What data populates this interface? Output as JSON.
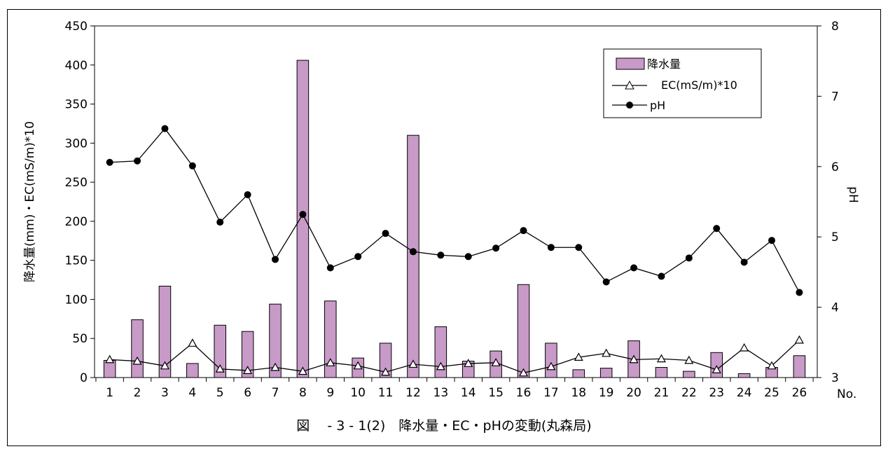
{
  "chart_data": {
    "type": "bar",
    "caption": "図　 - 3 - 1(2)　降水量・EC・pHの変動(丸森局)",
    "categories": [
      "1",
      "2",
      "3",
      "4",
      "5",
      "6",
      "7",
      "8",
      "9",
      "10",
      "11",
      "12",
      "13",
      "14",
      "15",
      "16",
      "17",
      "18",
      "19",
      "20",
      "21",
      "22",
      "23",
      "24",
      "25",
      "26"
    ],
    "x_end_label": "No.",
    "y_left": {
      "label": "降水量(mm)・EC(mS/m)*10",
      "min": 0,
      "max": 450,
      "ticks": [
        0,
        50,
        100,
        150,
        200,
        250,
        300,
        350,
        400,
        450
      ]
    },
    "y_right": {
      "label": "pH",
      "min": 3,
      "max": 8,
      "ticks": [
        3,
        4,
        5,
        6,
        7,
        8
      ]
    },
    "series": [
      {
        "name": "降水量",
        "type": "bar",
        "axis": "left",
        "color": "#c89ac8",
        "values": [
          22,
          74,
          117,
          18,
          67,
          59,
          94,
          406,
          98,
          25,
          44,
          310,
          65,
          21,
          34,
          119,
          44,
          10,
          12,
          47,
          13,
          8,
          32,
          5,
          13,
          28
        ]
      },
      {
        "name": "EC(mS/m)*10",
        "type": "line",
        "axis": "left",
        "marker": "triangle",
        "values": [
          23,
          21,
          15,
          44,
          11,
          9,
          13,
          8,
          19,
          15,
          7,
          17,
          14,
          18,
          19,
          6,
          14,
          26,
          31,
          23,
          24,
          22,
          10,
          38,
          15,
          48
        ]
      },
      {
        "name": "pH",
        "type": "line",
        "axis": "right",
        "marker": "circle",
        "values": [
          6.06,
          6.08,
          6.54,
          6.01,
          5.21,
          5.6,
          4.68,
          5.32,
          4.56,
          4.72,
          5.05,
          4.79,
          4.74,
          4.72,
          4.84,
          5.09,
          4.85,
          4.85,
          4.36,
          4.56,
          4.44,
          4.7,
          5.12,
          4.64,
          4.95,
          4.21
        ]
      }
    ],
    "legend_position": "top-right"
  }
}
